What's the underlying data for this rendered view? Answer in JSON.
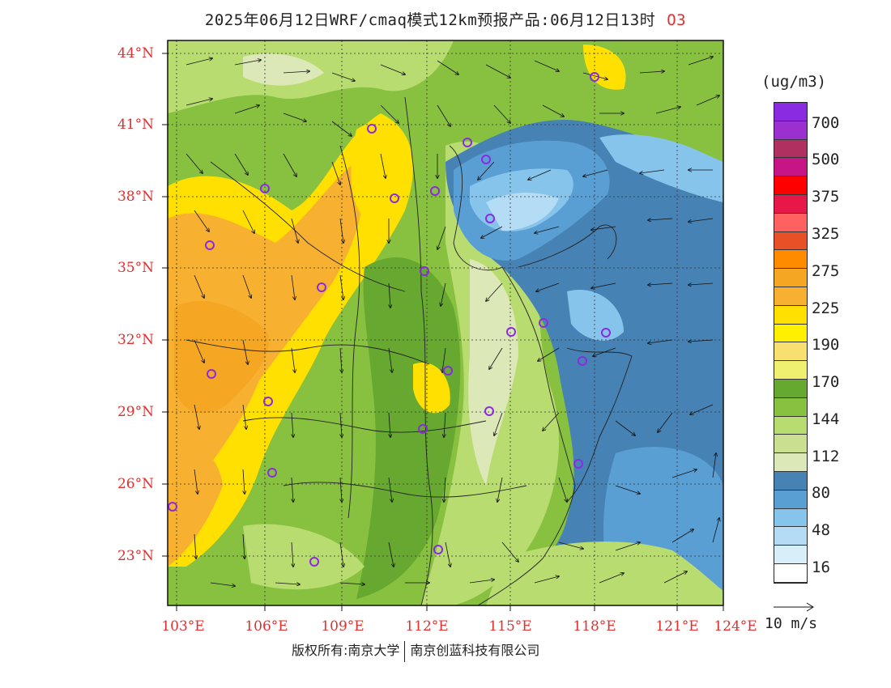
{
  "title": {
    "main": "2025年06月12日WRF/cmaq模式12km预报产品:06月12日13时",
    "pollutant": "O3"
  },
  "axes": {
    "lat_labels": [
      "44°N",
      "41°N",
      "38°N",
      "35°N",
      "32°N",
      "29°N",
      "26°N",
      "23°N"
    ],
    "lon_labels": [
      "103°E",
      "106°E",
      "109°E",
      "112°E",
      "115°E",
      "118°E",
      "121°E",
      "124°E"
    ]
  },
  "legend": {
    "unit": "(ug/m3)",
    "labels": [
      "700",
      "500",
      "375",
      "325",
      "275",
      "225",
      "190",
      "170",
      "144",
      "112",
      "80",
      "48",
      "16"
    ],
    "colors": [
      "#8a2be2",
      "#9b30d0",
      "#b03060",
      "#c71585",
      "#ff0000",
      "#e8174a",
      "#ff6060",
      "#e85028",
      "#ff8c00",
      "#f5a623",
      "#f7b030",
      "#ffe000",
      "#fff000",
      "#f8e070",
      "#f0f070",
      "#66a830",
      "#88c040",
      "#b8dc70",
      "#c8e090",
      "#dce8b8",
      "#4682b4",
      "#5a9fd4",
      "#87c4ec",
      "#b4dcf4",
      "#d8eef8",
      "#ffffff"
    ],
    "wind_reference": "10 m/s"
  },
  "copyright": {
    "part1": "版权所有:南京大学",
    "part2": "南京创蓝科技有限公司"
  },
  "colors": {
    "accent_red": "#e03030",
    "station_marker": "#8a2be2"
  }
}
